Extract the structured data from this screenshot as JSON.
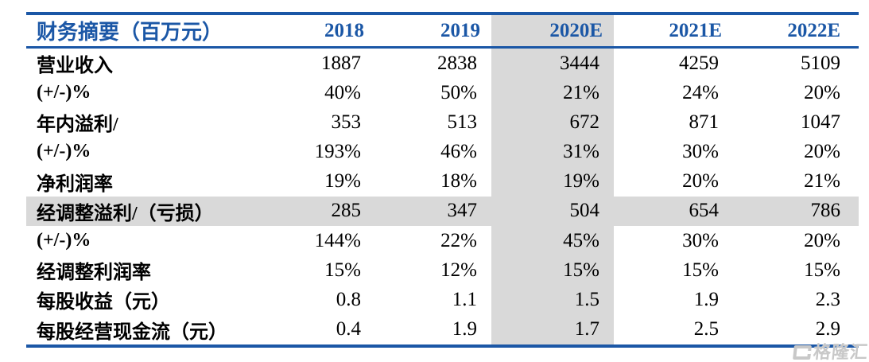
{
  "table": {
    "title_header": "财务摘要（百万元）",
    "columns": [
      "2018",
      "2019",
      "2020E",
      "2021E",
      "2022E"
    ],
    "highlighted_column": "2020E",
    "rows": [
      {
        "label": "营业收入",
        "values": [
          "1887",
          "2838",
          "3444",
          "4259",
          "5109"
        ],
        "highlight": false
      },
      {
        "label": "(+/-)%",
        "values": [
          "40%",
          "50%",
          "21%",
          "24%",
          "20%"
        ],
        "highlight": false
      },
      {
        "label": "年内溢利/",
        "values": [
          "353",
          "513",
          "672",
          "871",
          "1047"
        ],
        "highlight": false
      },
      {
        "label": "(+/-)%",
        "values": [
          "193%",
          "46%",
          "31%",
          "30%",
          "20%"
        ],
        "highlight": false
      },
      {
        "label": "净利润率",
        "values": [
          "19%",
          "18%",
          "19%",
          "20%",
          "21%"
        ],
        "highlight": false
      },
      {
        "label": "经调整溢利/（亏损）",
        "values": [
          "285",
          "347",
          "504",
          "654",
          "786"
        ],
        "highlight": true
      },
      {
        "label": "(+/-)%",
        "values": [
          "144%",
          "22%",
          "45%",
          "30%",
          "20%"
        ],
        "highlight": false
      },
      {
        "label": "经调整利润率",
        "values": [
          "15%",
          "12%",
          "15%",
          "15%",
          "15%"
        ],
        "highlight": false
      },
      {
        "label": "每股收益（元）",
        "values": [
          "0.8",
          "1.1",
          "1.5",
          "1.9",
          "2.3"
        ],
        "highlight": false
      },
      {
        "label": "每股经营现金流（元）",
        "values": [
          "0.4",
          "1.9",
          "1.7",
          "2.5",
          "2.9"
        ],
        "highlight": false
      }
    ]
  },
  "watermark": {
    "text": "格隆汇"
  },
  "colors": {
    "accent_blue": "#1B57A6",
    "highlight_gray": "#D9D9D9",
    "watermark_gray": "#C8C8C8"
  }
}
